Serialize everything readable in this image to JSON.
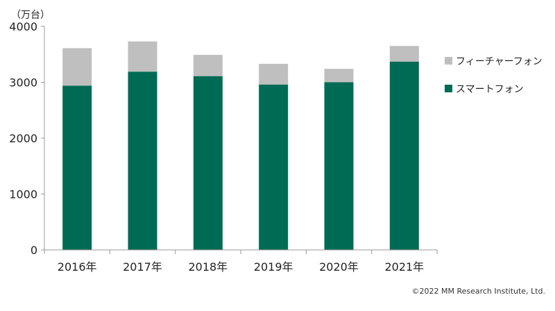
{
  "chart_data": {
    "type": "bar",
    "stacked": true,
    "unit_label": "（万台）",
    "categories": [
      "2016年",
      "2017年",
      "2018年",
      "2019年",
      "2020年",
      "2021年"
    ],
    "series": [
      {
        "name": "スマートフォン",
        "color": "#006b54",
        "values": [
          2940,
          3190,
          3110,
          2960,
          3000,
          3370
        ]
      },
      {
        "name": "フィーチャーフォン",
        "color": "#bfbfbf",
        "values": [
          670,
          540,
          380,
          370,
          240,
          280
        ]
      }
    ],
    "ylim": [
      0,
      4000
    ],
    "yticks": [
      0,
      1000,
      2000,
      3000,
      4000
    ],
    "legend_position": "right",
    "grid": false
  },
  "copyright": "©2022 MM Research Institute, Ltd."
}
